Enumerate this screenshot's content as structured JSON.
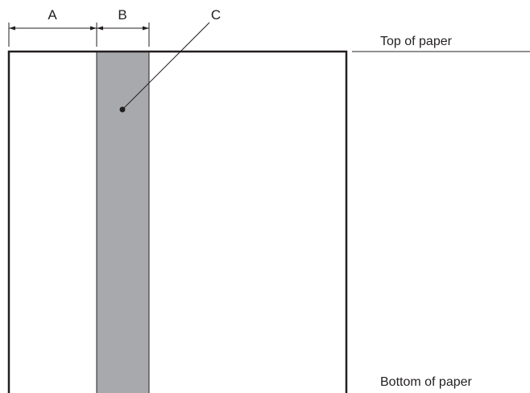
{
  "labels": {
    "a": "A",
    "b": "B",
    "c": "C"
  },
  "notes": {
    "top": "Top of paper",
    "bottom": "Bottom of paper"
  },
  "colors": {
    "line": "#231f20",
    "stripe_fill": "#a7a9ac",
    "paper": "#ffffff"
  }
}
